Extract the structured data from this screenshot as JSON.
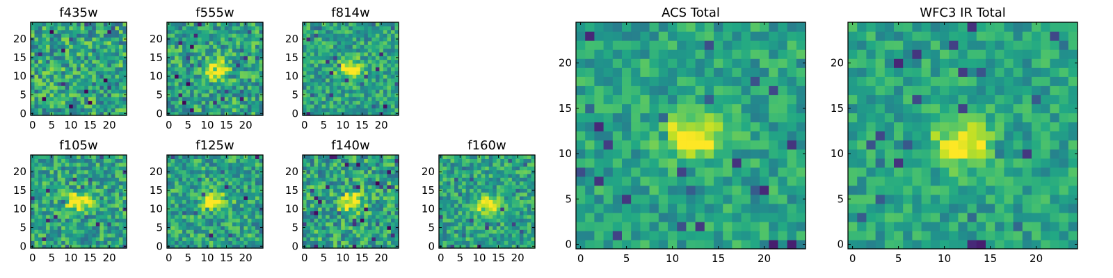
{
  "chart_data": [
    {
      "type": "heatmap",
      "title": "f435w",
      "grid_size": [
        25,
        25
      ],
      "x_ticks": [
        0,
        5,
        10,
        15,
        20
      ],
      "y_ticks": [
        0,
        5,
        10,
        15,
        20
      ],
      "colormap": "viridis",
      "source_center": null,
      "noise_level": 0.26,
      "seed": 11
    },
    {
      "type": "heatmap",
      "title": "f555w",
      "grid_size": [
        25,
        25
      ],
      "x_ticks": [
        0,
        5,
        10,
        15,
        20
      ],
      "y_ticks": [
        0,
        5,
        10,
        15,
        20
      ],
      "colormap": "viridis",
      "source_center": [
        12,
        12
      ],
      "noise_level": 0.24,
      "seed": 23
    },
    {
      "type": "heatmap",
      "title": "f814w",
      "grid_size": [
        25,
        25
      ],
      "x_ticks": [
        0,
        5,
        10,
        15,
        20
      ],
      "y_ticks": [
        0,
        5,
        10,
        15,
        20
      ],
      "colormap": "viridis",
      "source_center": [
        12,
        12
      ],
      "noise_level": 0.2,
      "seed": 37
    },
    {
      "type": "heatmap",
      "title": "f105w",
      "grid_size": [
        25,
        25
      ],
      "x_ticks": [
        0,
        5,
        10,
        15,
        20
      ],
      "y_ticks": [
        0,
        5,
        10,
        15,
        20
      ],
      "colormap": "viridis",
      "source_center": [
        12,
        12
      ],
      "noise_level": 0.22,
      "seed": 41
    },
    {
      "type": "heatmap",
      "title": "f125w",
      "grid_size": [
        25,
        25
      ],
      "x_ticks": [
        0,
        5,
        10,
        15,
        20
      ],
      "y_ticks": [
        0,
        5,
        10,
        15,
        20
      ],
      "colormap": "viridis",
      "source_center": [
        12,
        12
      ],
      "noise_level": 0.22,
      "seed": 53
    },
    {
      "type": "heatmap",
      "title": "f140w",
      "grid_size": [
        25,
        25
      ],
      "x_ticks": [
        0,
        5,
        10,
        15,
        20
      ],
      "y_ticks": [
        0,
        5,
        10,
        15,
        20
      ],
      "colormap": "viridis",
      "source_center": [
        12,
        12
      ],
      "noise_level": 0.24,
      "seed": 67
    },
    {
      "type": "heatmap",
      "title": "f160w",
      "grid_size": [
        25,
        25
      ],
      "x_ticks": [
        0,
        5,
        10,
        15,
        20
      ],
      "y_ticks": [
        0,
        5,
        10,
        15,
        20
      ],
      "colormap": "viridis",
      "source_center": [
        12,
        11
      ],
      "noise_level": 0.2,
      "seed": 79
    },
    {
      "type": "heatmap",
      "title": "ACS Total",
      "grid_size": [
        25,
        25
      ],
      "x_ticks": [
        0,
        5,
        10,
        15,
        20
      ],
      "y_ticks": [
        0,
        5,
        10,
        15,
        20
      ],
      "colormap": "viridis",
      "source_center": [
        12,
        12
      ],
      "noise_level": 0.16,
      "seed": 83
    },
    {
      "type": "heatmap",
      "title": "WFC3 IR Total",
      "grid_size": [
        25,
        25
      ],
      "x_ticks": [
        0,
        5,
        10,
        15,
        20
      ],
      "y_ticks": [
        0,
        5,
        10,
        15,
        20
      ],
      "colormap": "viridis",
      "source_center": [
        12,
        11
      ],
      "noise_level": 0.15,
      "seed": 97
    }
  ]
}
